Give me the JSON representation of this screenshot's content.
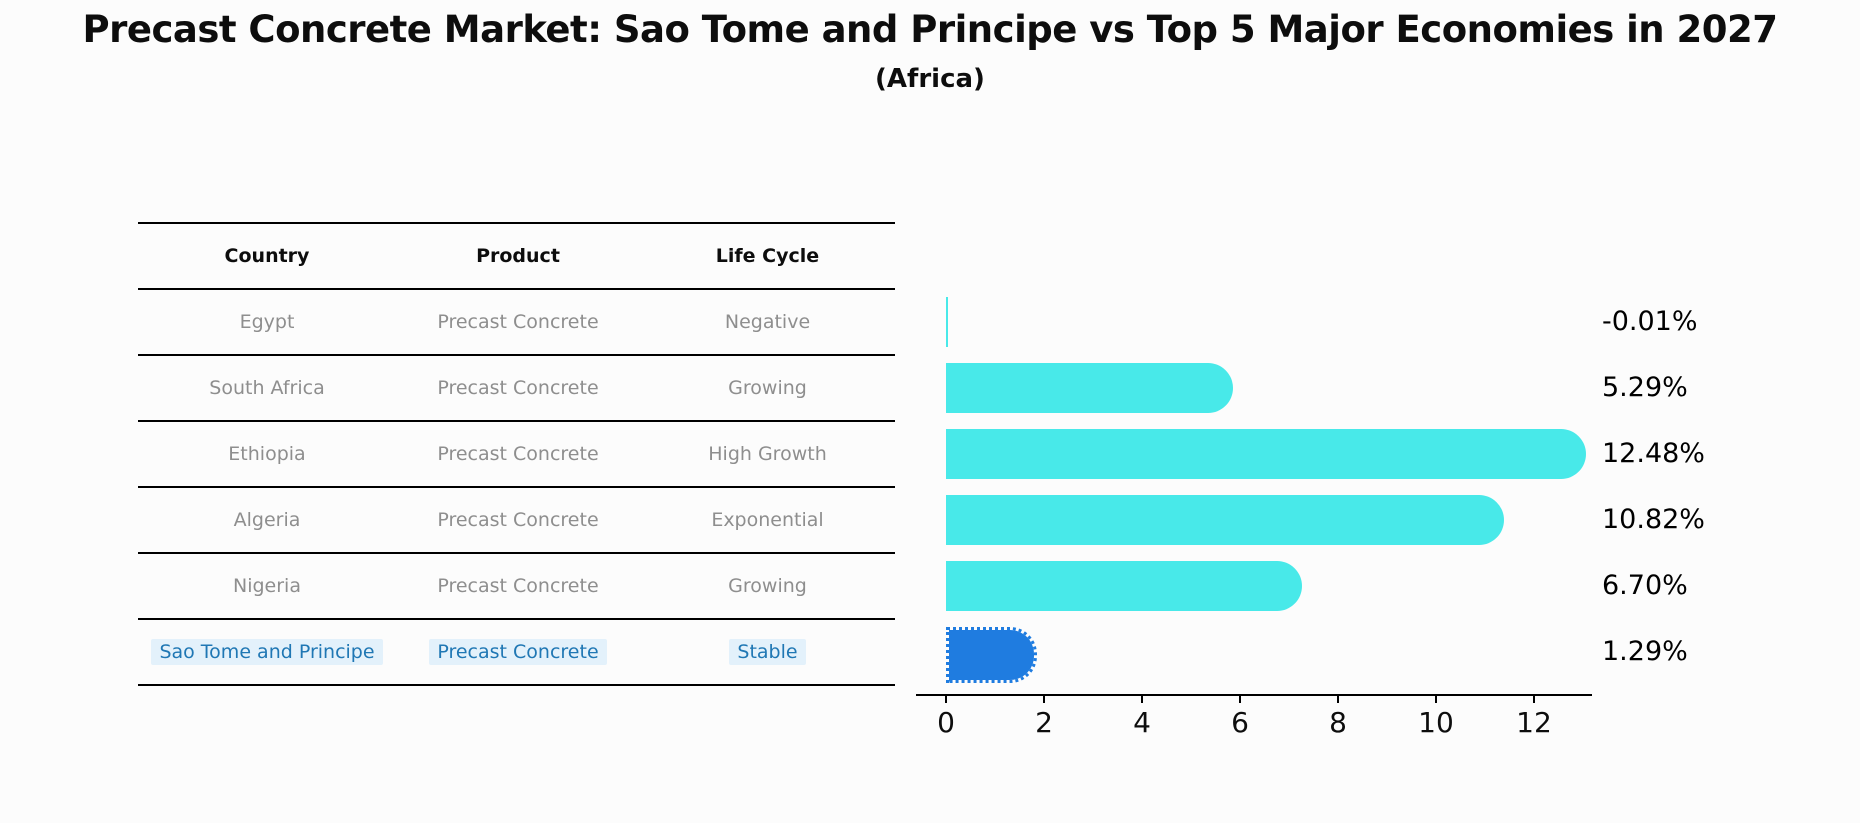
{
  "title": "Precast Concrete Market: Sao Tome and Principe vs Top 5 Major Economies in 2027",
  "subtitle": "(Africa)",
  "table": {
    "headers": [
      "Country",
      "Product",
      "Life Cycle"
    ],
    "rows": [
      {
        "country": "Egypt",
        "product": "Precast Concrete",
        "life_cycle": "Negative",
        "highlighted": false
      },
      {
        "country": "South Africa",
        "product": "Precast Concrete",
        "life_cycle": "Growing",
        "highlighted": false
      },
      {
        "country": "Ethiopia",
        "product": "Precast Concrete",
        "life_cycle": "High Growth",
        "highlighted": false
      },
      {
        "country": "Algeria",
        "product": "Precast Concrete",
        "life_cycle": "Exponential",
        "highlighted": false
      },
      {
        "country": "Nigeria",
        "product": "Precast Concrete",
        "life_cycle": "Growing",
        "highlighted": false
      },
      {
        "country": "Sao Tome and Principe",
        "product": "Precast Concrete",
        "life_cycle": "Stable",
        "highlighted": true
      }
    ]
  },
  "chart_data": {
    "type": "bar",
    "orientation": "horizontal",
    "categories": [
      "Egypt",
      "South Africa",
      "Ethiopia",
      "Algeria",
      "Nigeria",
      "Sao Tome and Principe"
    ],
    "values": [
      -0.01,
      5.29,
      12.48,
      10.82,
      6.7,
      1.29
    ],
    "value_labels": [
      "-0.01%",
      "5.29%",
      "12.48%",
      "10.82%",
      "6.70%",
      "1.29%"
    ],
    "xticks": [
      "0",
      "2",
      "4",
      "6",
      "8",
      "10",
      "12"
    ],
    "xtick_values": [
      0,
      2,
      4,
      6,
      8,
      10,
      12
    ],
    "xlim": [
      -0.6,
      13.2
    ],
    "grid": false,
    "legend": "none",
    "bar_color": "#48e9e9",
    "highlight_bar_color": "#1f7ce0",
    "highlight_index": 5,
    "highlight_text_color": "#1f77b4"
  },
  "colors": {
    "background": "#fcfcfc",
    "bar_cyan": "#48e9e9",
    "bar_blue": "#1f7ce0",
    "table_text_gray": "#8e8e8e",
    "table_text_blue": "#1f77b4",
    "axis_black": "#000000"
  }
}
